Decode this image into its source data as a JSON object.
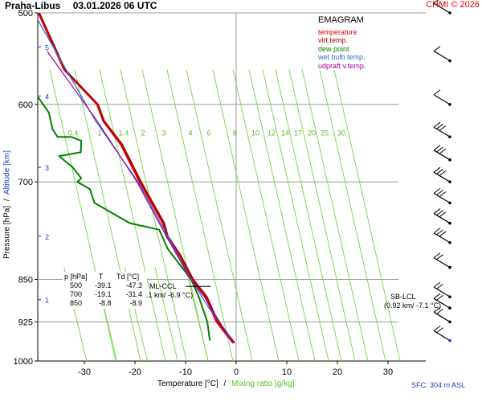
{
  "header": {
    "station": "Praha-Libus",
    "datetime": "03.01.2026 06 UTC",
    "copyright": "CHMI © 2026"
  },
  "legend": {
    "title": "EMAGRAM",
    "items": [
      {
        "label": "temperature",
        "color": "#e00000"
      },
      {
        "label": "virt.temp.",
        "color": "#b00000"
      },
      {
        "label": "dew point",
        "color": "#008000"
      },
      {
        "label": "wet bulb temp.",
        "color": "#2a6fd6"
      },
      {
        "label": "udpraft v.temp.",
        "color": "#9a009a"
      }
    ]
  },
  "axes": {
    "ylabel_pressure": "Pressure [hPa]",
    "ylabel_sep": "/",
    "ylabel_altitude": "Altitude [km]",
    "xlabel_temp": "Temperature [°C]",
    "xlabel_sep": "/",
    "xlabel_mixing": "Mixing ratio [g/kg]",
    "surface": "SFC: 304 m ASL"
  },
  "table": {
    "header": [
      "p [hPa]",
      "T",
      "Td [°C]"
    ],
    "rows": [
      [
        "500",
        "-39.1",
        "-47.3"
      ],
      [
        "700",
        "-19.1",
        "-31.4"
      ],
      [
        "850",
        "-8.8",
        "-8.9"
      ]
    ]
  },
  "annotations": {
    "ml_ccl": "ML-CCL",
    "ml_ccl_value": ".1 km/ -6.9 °C)",
    "sb_lcl": "SB-LCL",
    "sb_lcl_value": "(0.92 km/ -7.1 °C)"
  },
  "chart_data": {
    "type": "line",
    "title": "EMAGRAM",
    "xlabel": "Temperature [°C]",
    "ylabel": "Pressure [hPa]",
    "xlim": [
      -39,
      32
    ],
    "ylim": [
      1000,
      500
    ],
    "y_scale": "log",
    "grid": true,
    "legend_position": "top-right",
    "temp_ticks": [
      -30,
      -20,
      -10,
      0,
      10,
      20,
      30
    ],
    "pressure_ticks": [
      500,
      600,
      700,
      850,
      925,
      1000
    ],
    "altitude_ticks": [
      {
        "label": "5",
        "p": 535
      },
      {
        "label": "4",
        "p": 590
      },
      {
        "label": "3",
        "p": 680
      },
      {
        "label": "2",
        "p": 780
      },
      {
        "label": "1",
        "p": 885
      }
    ],
    "mixing_ratio_labels": [
      "0.4",
      "1",
      "1.4",
      "2",
      "3",
      "4",
      "6",
      "8",
      "10",
      "12",
      "14",
      "17",
      "20",
      "25",
      "30"
    ],
    "series": [
      {
        "name": "temperature",
        "color": "#e00000",
        "points": [
          [
            -39.1,
            500
          ],
          [
            -34,
            560
          ],
          [
            -27.5,
            600
          ],
          [
            -26.3,
            620
          ],
          [
            -22.8,
            650
          ],
          [
            -19.1,
            700
          ],
          [
            -14.5,
            760
          ],
          [
            -13.8,
            780
          ],
          [
            -11.3,
            810
          ],
          [
            -8.8,
            850
          ],
          [
            -6.1,
            880
          ],
          [
            -3.9,
            925
          ],
          [
            -0.6,
            965
          ]
        ]
      },
      {
        "name": "virt.temp.",
        "color": "#b00000",
        "points": [
          [
            -38.9,
            500
          ],
          [
            -33.8,
            560
          ],
          [
            -27.3,
            600
          ],
          [
            -26.1,
            620
          ],
          [
            -22.5,
            650
          ],
          [
            -18.8,
            700
          ],
          [
            -14.2,
            760
          ],
          [
            -13.5,
            780
          ],
          [
            -11,
            810
          ],
          [
            -8.5,
            850
          ],
          [
            -5.8,
            880
          ],
          [
            -3.6,
            925
          ],
          [
            -0.3,
            965
          ]
        ]
      },
      {
        "name": "dew point",
        "color": "#008000",
        "points": [
          [
            -47.3,
            500
          ],
          [
            -41.3,
            555
          ],
          [
            -39.3,
            590
          ],
          [
            -37,
            610
          ],
          [
            -36.3,
            630
          ],
          [
            -35.3,
            640
          ],
          [
            -32.7,
            640
          ],
          [
            -30.6,
            645
          ],
          [
            -30.7,
            660
          ],
          [
            -35,
            665
          ],
          [
            -32.3,
            680
          ],
          [
            -30.6,
            695
          ],
          [
            -31.4,
            700
          ],
          [
            -28.9,
            710
          ],
          [
            -28,
            730
          ],
          [
            -21,
            760
          ],
          [
            -15.2,
            770
          ],
          [
            -13.5,
            800
          ],
          [
            -8.9,
            850
          ],
          [
            -7.4,
            880
          ],
          [
            -5.7,
            925
          ],
          [
            -5.2,
            960
          ]
        ]
      },
      {
        "name": "wet bulb temp.",
        "color": "#2a6fd6",
        "points": [
          [
            -40,
            500
          ],
          [
            -27.8,
            620
          ],
          [
            -19.4,
            700
          ],
          [
            -13.5,
            780
          ],
          [
            -8.9,
            850
          ],
          [
            -5.4,
            900
          ],
          [
            -1,
            955
          ]
        ]
      },
      {
        "name": "udpraft v.temp.",
        "color": "#9a009a",
        "points": [
          [
            -37.3,
            540
          ],
          [
            -27.5,
            620
          ],
          [
            -19.6,
            700
          ],
          [
            -13.8,
            780
          ],
          [
            -9,
            850
          ],
          [
            -6.3,
            880
          ],
          [
            -0.7,
            965
          ]
        ]
      }
    ],
    "wind_profile_pressures": [
      500,
      550,
      600,
      640,
      670,
      700,
      730,
      760,
      790,
      830,
      880,
      900,
      925,
      960
    ]
  }
}
